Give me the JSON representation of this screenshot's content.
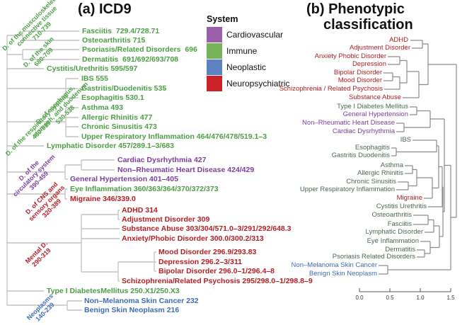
{
  "colors": {
    "system_colors": {
      "Cardiovascular": "#7d3f9b",
      "Immune": "#4c9e45",
      "Neoplastic": "#3f6cb4",
      "Neuropsychiatric": "#b32025"
    },
    "panel_b_immune_text": "#4a6950",
    "panel_a_line": "#c4c4c4",
    "panel_b_line": "#8a8a8a"
  },
  "legend": {
    "title": "System",
    "items": [
      {
        "label": "Cardiovascular",
        "color": "#9a5fa8"
      },
      {
        "label": "Immune",
        "color": "#78b25a"
      },
      {
        "label": "Neoplastic",
        "color": "#5c82c1"
      },
      {
        "label": "Neuropsychiatric",
        "color": "#cc2128"
      }
    ]
  },
  "panel_a": {
    "title": "(a) ICD9",
    "branches": [
      {
        "lines": [
          "D. of the musculoskeletal /",
          "connective tissue",
          "710-739"
        ],
        "system": "Immune"
      },
      {
        "lines": [
          "D. of the skin",
          "680-709"
        ],
        "system": "Immune"
      },
      {
        "lines": [
          "D. of esophagus,",
          "stomach, and duodenum",
          "530-538"
        ],
        "system": "Immune"
      },
      {
        "lines": [
          "D. of the respiratory system",
          "460-519"
        ],
        "system": "Immune"
      },
      {
        "lines": [
          "D. of the",
          "circulatory system",
          "390-459"
        ],
        "system": "Cardiovascular"
      },
      {
        "lines": [
          "D. of CNS and",
          "sensory organs",
          "320-389"
        ],
        "system": "Neuropsychiatric"
      },
      {
        "lines": [
          "Mental D.",
          "290-319"
        ],
        "system": "Neuropsychiatric"
      },
      {
        "lines": [
          "Neoplasms",
          "140-239"
        ],
        "system": "Neoplastic"
      }
    ],
    "leaves": [
      {
        "label": "Fasciitis  729.4/728.71",
        "system": "Immune"
      },
      {
        "label": "Osteoarthritis 715",
        "system": "Immune"
      },
      {
        "label": "Psoriasis/Related Disorders  696",
        "system": "Immune"
      },
      {
        "label": "Dermatitis  691/692/693/708",
        "system": "Immune"
      },
      {
        "label": "Cystitis/Urethritis 595/597",
        "system": "Immune"
      },
      {
        "label": "IBS 555",
        "system": "Immune"
      },
      {
        "label": "Gastritis/Duodenitis 535",
        "system": "Immune"
      },
      {
        "label": "Esophagitis 530.1",
        "system": "Immune"
      },
      {
        "label": "Asthma 493",
        "system": "Immune"
      },
      {
        "label": "Allergic Rhinitis 477",
        "system": "Immune"
      },
      {
        "label": "Chronic Sinusitis 473",
        "system": "Immune"
      },
      {
        "label": "Upper Respiratory Inflammation 464/476/478/519.1–3",
        "system": "Immune"
      },
      {
        "label": "Lymphatic Disorder 457/289.1–3/683",
        "system": "Immune"
      },
      {
        "label": "Cardiac Dysrhythmia 427",
        "system": "Cardiovascular"
      },
      {
        "label": "Non–Rheumatic Heart Disease 424/429",
        "system": "Cardiovascular"
      },
      {
        "label": "General Hypertension 401–405",
        "system": "Cardiovascular"
      },
      {
        "label": "Eye Inflammation 360/363/364/370/372/373",
        "system": "Immune"
      },
      {
        "label": "Migraine 346/339.0",
        "system": "Neuropsychiatric"
      },
      {
        "label": "ADHD 314",
        "system": "Neuropsychiatric"
      },
      {
        "label": "Adjustment Disorder 309",
        "system": "Neuropsychiatric"
      },
      {
        "label": "Substance Abuse 303/304/571.0–3/291/292/648.3",
        "system": "Neuropsychiatric"
      },
      {
        "label": "Anxiety/Phobic Disorder 300.0/300.2/313",
        "system": "Neuropsychiatric"
      },
      {
        "label": "Mood Disorder 296.9/293.83",
        "system": "Neuropsychiatric"
      },
      {
        "label": "Depression 296.2–3/311",
        "system": "Neuropsychiatric"
      },
      {
        "label": "Bipolar Disorder 296.0–1/296.4–8",
        "system": "Neuropsychiatric"
      },
      {
        "label": "Schizophrenia/Related Psychosis 295/298.0–1/298.8–9",
        "system": "Neuropsychiatric"
      },
      {
        "label": "Type I DiabetesMellitus 250.X1/250.X3",
        "system": "Immune"
      },
      {
        "label": "Non–Melanoma Skin Cancer 232",
        "system": "Neoplastic"
      },
      {
        "label": "Benign Skin Neoplasm 216",
        "system": "Neoplastic"
      }
    ]
  },
  "panel_b": {
    "title_line1": "(b) Phenotypic",
    "title_line2": "classification",
    "leaves": [
      {
        "label": "ADHD",
        "system": "Neuropsychiatric"
      },
      {
        "label": "Adjustment Disorder",
        "system": "Neuropsychiatric"
      },
      {
        "label": "Anxiety Phobic Disorder",
        "system": "Neuropsychiatric"
      },
      {
        "label": "Depression",
        "system": "Neuropsychiatric"
      },
      {
        "label": "Bipolar Disorder",
        "system": "Neuropsychiatric"
      },
      {
        "label": "Mood Disorder",
        "system": "Neuropsychiatric"
      },
      {
        "label": "Schizophrenia / Related Psychosis",
        "system": "Neuropsychiatric"
      },
      {
        "label": "Substance Abuse",
        "system": "Neuropsychiatric"
      },
      {
        "label": "Type I Diabetes Mellitus",
        "system": "Immune"
      },
      {
        "label": "General Hypertension",
        "system": "Cardiovascular"
      },
      {
        "label": "Non–Rheumatic Heart Disease",
        "system": "Cardiovascular"
      },
      {
        "label": "Cardiac Dysrhythmia",
        "system": "Cardiovascular"
      },
      {
        "label": "IBS",
        "system": "Immune"
      },
      {
        "label": "Esophagitis",
        "system": "Immune"
      },
      {
        "label": "Gastritis Duodenitis",
        "system": "Immune"
      },
      {
        "label": "Asthma",
        "system": "Immune"
      },
      {
        "label": "Allergic Rhinitis",
        "system": "Immune"
      },
      {
        "label": "Chronic Sinusitis",
        "system": "Immune"
      },
      {
        "label": "Upper Respiratory Inflammation",
        "system": "Immune"
      },
      {
        "label": "Migraine",
        "system": "Neuropsychiatric"
      },
      {
        "label": "Cystitis Urethritis",
        "system": "Immune"
      },
      {
        "label": "Osteoarthritis",
        "system": "Immune"
      },
      {
        "label": "Fasciitis",
        "system": "Immune"
      },
      {
        "label": "Lymphatic Disorder",
        "system": "Immune"
      },
      {
        "label": "Eye Inflammation",
        "system": "Immune"
      },
      {
        "label": "Dermatitis",
        "system": "Immune"
      },
      {
        "label": "Psoriasis Related Disorders",
        "system": "Immune"
      },
      {
        "label": "Non–Melanoma Skin Cancer",
        "system": "Neoplastic"
      },
      {
        "label": "Benign Skin Neoplasm",
        "system": "Neoplastic"
      }
    ],
    "axis": {
      "ticks": [
        "0.0",
        "0.5",
        "1.0",
        "1.5"
      ]
    }
  }
}
